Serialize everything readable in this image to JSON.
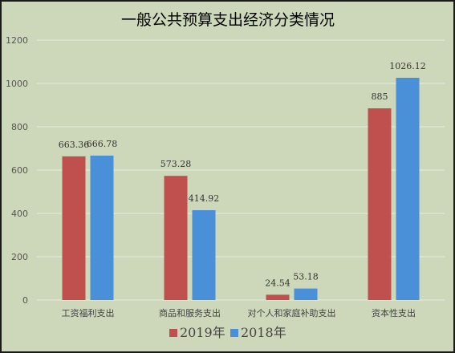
{
  "chart_data": {
    "type": "bar",
    "title": "一般公共预算支出经济分类情况",
    "categories": [
      "工资福利支出",
      "商品和服务支出",
      "对个人和家庭补助支出",
      "资本性支出"
    ],
    "series": [
      {
        "name": "2019年",
        "values": [
          663.36,
          573.28,
          24.54,
          885
        ],
        "labels": [
          "663.36",
          "573.28",
          "24.54",
          "885"
        ],
        "color": "#c0504d"
      },
      {
        "name": "2018年",
        "values": [
          666.78,
          414.92,
          53.18,
          1026.12
        ],
        "labels": [
          "666.78",
          "414.92",
          "53.18",
          "1026.12"
        ],
        "color": "#4a90d9"
      }
    ],
    "yticks": [
      "0",
      "200",
      "400",
      "600",
      "800",
      "1000",
      "1200"
    ],
    "ylim": [
      0,
      1200
    ],
    "grid": true,
    "legend": "bottom",
    "background": "#ccd8b9",
    "gridline_color": "#e8eddf"
  }
}
